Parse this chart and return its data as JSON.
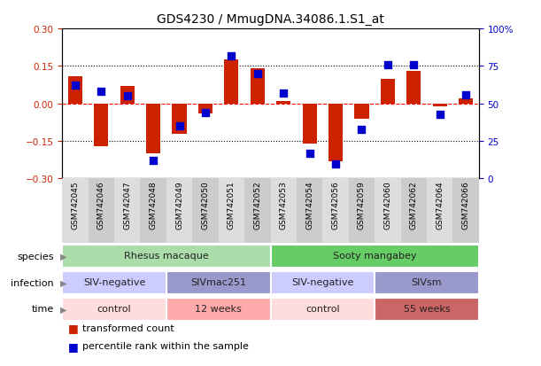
{
  "title": "GDS4230 / MmugDNA.34086.1.S1_at",
  "samples": [
    "GSM742045",
    "GSM742046",
    "GSM742047",
    "GSM742048",
    "GSM742049",
    "GSM742050",
    "GSM742051",
    "GSM742052",
    "GSM742053",
    "GSM742054",
    "GSM742056",
    "GSM742059",
    "GSM742060",
    "GSM742062",
    "GSM742064",
    "GSM742066"
  ],
  "red_values": [
    0.11,
    -0.17,
    0.07,
    -0.2,
    -0.12,
    -0.04,
    0.175,
    0.14,
    0.01,
    -0.16,
    -0.23,
    -0.06,
    0.1,
    0.13,
    -0.01,
    0.02
  ],
  "blue_values": [
    62,
    58,
    55,
    12,
    35,
    44,
    82,
    70,
    57,
    17,
    10,
    33,
    76,
    76,
    43,
    56
  ],
  "ylim_left": [
    -0.3,
    0.3
  ],
  "ylim_right": [
    0,
    100
  ],
  "yticks_left": [
    -0.3,
    -0.15,
    0.0,
    0.15,
    0.3
  ],
  "yticks_right": [
    0,
    25,
    50,
    75,
    100
  ],
  "ytick_labels_right": [
    "0",
    "25",
    "50",
    "75",
    "100%"
  ],
  "hlines_dotted": [
    -0.15,
    0.15
  ],
  "hline_dashed": 0.0,
  "species_groups": [
    {
      "label": "Rhesus macaque",
      "start": 0,
      "end": 8,
      "color": "#aaddaa"
    },
    {
      "label": "Sooty mangabey",
      "start": 8,
      "end": 16,
      "color": "#66cc66"
    }
  ],
  "infection_groups": [
    {
      "label": "SIV-negative",
      "start": 0,
      "end": 4,
      "color": "#ccccff"
    },
    {
      "label": "SIVmac251",
      "start": 4,
      "end": 8,
      "color": "#9999cc"
    },
    {
      "label": "SIV-negative",
      "start": 8,
      "end": 12,
      "color": "#ccccff"
    },
    {
      "label": "SIVsm",
      "start": 12,
      "end": 16,
      "color": "#9999cc"
    }
  ],
  "time_groups": [
    {
      "label": "control",
      "start": 0,
      "end": 4,
      "color": "#ffdddd"
    },
    {
      "label": "12 weeks",
      "start": 4,
      "end": 8,
      "color": "#ffaaaa"
    },
    {
      "label": "control",
      "start": 8,
      "end": 12,
      "color": "#ffdddd"
    },
    {
      "label": "55 weeks",
      "start": 12,
      "end": 16,
      "color": "#cc6666"
    }
  ],
  "row_labels": [
    "species",
    "infection",
    "time"
  ],
  "legend_red": "transformed count",
  "legend_blue": "percentile rank within the sample",
  "red_color": "#cc2200",
  "blue_color": "#0000cc",
  "bar_width": 0.55,
  "blue_marker_size": 28,
  "xtick_colors": [
    "#dddddd",
    "#cccccc"
  ]
}
